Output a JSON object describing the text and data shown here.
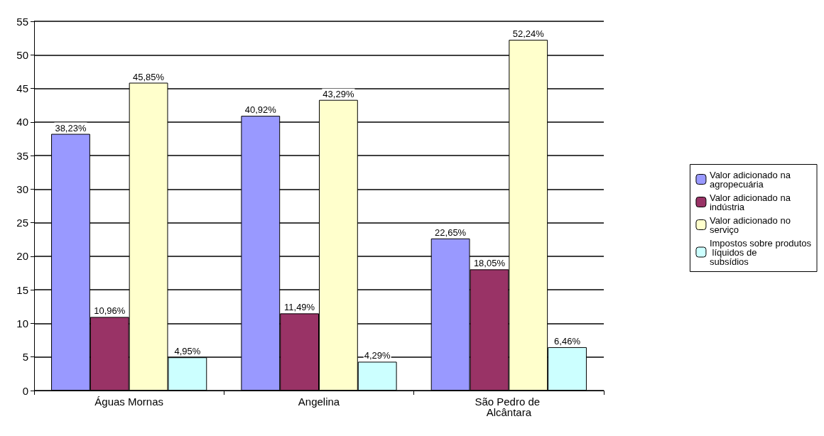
{
  "chart_data": {
    "type": "bar",
    "categories": [
      "Águas Mornas",
      "Angelina",
      "São Pedro de Alcântara"
    ],
    "series": [
      {
        "name": "Valor adicionado na agropecuária",
        "color": "#9999ff",
        "values": [
          38.23,
          40.92,
          22.65
        ],
        "value_labels": [
          "38,23%",
          "40,92%",
          "22,65%"
        ]
      },
      {
        "name": "Valor adicionado na indústria",
        "color": "#993366",
        "values": [
          10.96,
          11.49,
          18.05
        ],
        "value_labels": [
          "10,96%",
          "11,49%",
          "18,05%"
        ]
      },
      {
        "name": "Valor adicionado no serviço",
        "color": "#ffffcc",
        "values": [
          45.85,
          43.29,
          52.24
        ],
        "value_labels": [
          "45,85%",
          "43,29%",
          "52,24%"
        ]
      },
      {
        "name": "Impostos sobre produtos líquidos de subsídios",
        "color": "#ccffff",
        "values": [
          4.95,
          4.29,
          6.46
        ],
        "value_labels": [
          "4,95%",
          "4,29%",
          "6,46%"
        ]
      }
    ],
    "ylim": [
      0,
      55
    ],
    "yticks": [
      0,
      5,
      10,
      15,
      20,
      25,
      30,
      35,
      40,
      45,
      50,
      55
    ],
    "grid": "y",
    "legend": "right"
  }
}
